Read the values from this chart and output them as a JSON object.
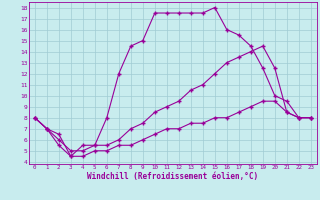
{
  "xlabel": "Windchill (Refroidissement éolien,°C)",
  "bg_color": "#c8ecee",
  "grid_color": "#a0ccd4",
  "line_color": "#990099",
  "line1_x": [
    0,
    1,
    2,
    3,
    4,
    5,
    6,
    7,
    8,
    9,
    10,
    11,
    12,
    13,
    14,
    15,
    16,
    17,
    18,
    19,
    20,
    21,
    22,
    23
  ],
  "line1_y": [
    8.0,
    7.0,
    6.5,
    4.5,
    5.5,
    5.5,
    8.0,
    12.0,
    14.5,
    15.0,
    17.5,
    17.5,
    17.5,
    17.5,
    17.5,
    18.0,
    16.0,
    15.5,
    14.5,
    12.5,
    10.0,
    9.5,
    8.0,
    8.0
  ],
  "line2_x": [
    0,
    1,
    2,
    3,
    4,
    5,
    6,
    7,
    8,
    9,
    10,
    11,
    12,
    13,
    14,
    15,
    16,
    17,
    18,
    19,
    20,
    21,
    22,
    23
  ],
  "line2_y": [
    8.0,
    7.0,
    6.0,
    5.0,
    5.0,
    5.5,
    5.5,
    6.0,
    7.0,
    7.5,
    8.5,
    9.0,
    9.5,
    10.5,
    11.0,
    12.0,
    13.0,
    13.5,
    14.0,
    14.5,
    12.5,
    8.5,
    8.0,
    8.0
  ],
  "line3_x": [
    0,
    1,
    2,
    3,
    4,
    5,
    6,
    7,
    8,
    9,
    10,
    11,
    12,
    13,
    14,
    15,
    16,
    17,
    18,
    19,
    20,
    21,
    22,
    23
  ],
  "line3_y": [
    8.0,
    7.0,
    5.5,
    4.5,
    4.5,
    5.0,
    5.0,
    5.5,
    5.5,
    6.0,
    6.5,
    7.0,
    7.0,
    7.5,
    7.5,
    8.0,
    8.0,
    8.5,
    9.0,
    9.5,
    9.5,
    8.5,
    8.0,
    8.0
  ],
  "ylim": [
    3.8,
    18.5
  ],
  "xlim": [
    -0.5,
    23.5
  ],
  "yticks": [
    4,
    5,
    6,
    7,
    8,
    9,
    10,
    11,
    12,
    13,
    14,
    15,
    16,
    17,
    18
  ],
  "xticks": [
    0,
    1,
    2,
    3,
    4,
    5,
    6,
    7,
    8,
    9,
    10,
    11,
    12,
    13,
    14,
    15,
    16,
    17,
    18,
    19,
    20,
    21,
    22,
    23
  ]
}
